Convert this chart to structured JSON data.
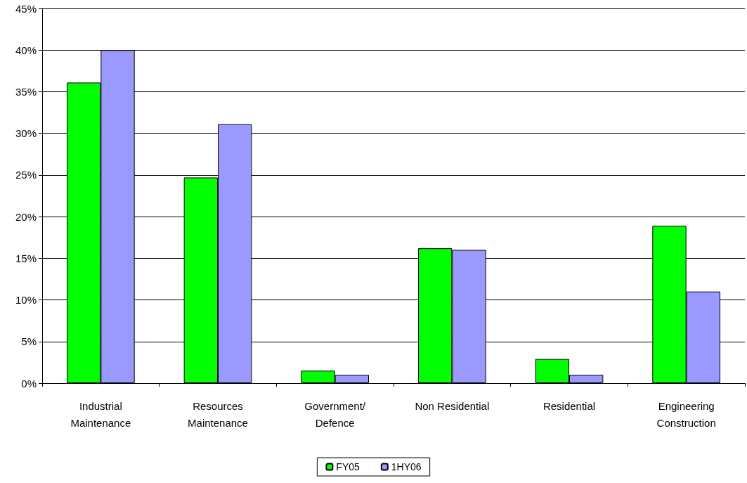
{
  "chart_data": {
    "type": "bar",
    "categories": [
      "Industrial\nMaintenance",
      "Resources\nMaintenance",
      "Government/\nDefence",
      "Non Residential",
      "Residential",
      "Engineering\nConstruction"
    ],
    "series": [
      {
        "name": "FY05",
        "color": "#00ff00",
        "values": [
          36.1,
          24.7,
          1.5,
          16.2,
          2.9,
          18.9
        ]
      },
      {
        "name": "1HY06",
        "color": "#9999ff",
        "values": [
          40,
          31.1,
          1,
          16,
          1,
          11
        ]
      }
    ],
    "ylim": [
      0,
      45
    ],
    "yticks": [
      {
        "value": 0,
        "label": "0%"
      },
      {
        "value": 5,
        "label": "5%"
      },
      {
        "value": 10,
        "label": "10%"
      },
      {
        "value": 15,
        "label": "15%"
      },
      {
        "value": 20,
        "label": "20%"
      },
      {
        "value": 25,
        "label": "25%"
      },
      {
        "value": 30,
        "label": "30%"
      },
      {
        "value": 35,
        "label": "35%"
      },
      {
        "value": 40,
        "label": "40%"
      },
      {
        "value": 45,
        "label": "45%"
      }
    ],
    "grid": "y",
    "legend": "bottom"
  }
}
